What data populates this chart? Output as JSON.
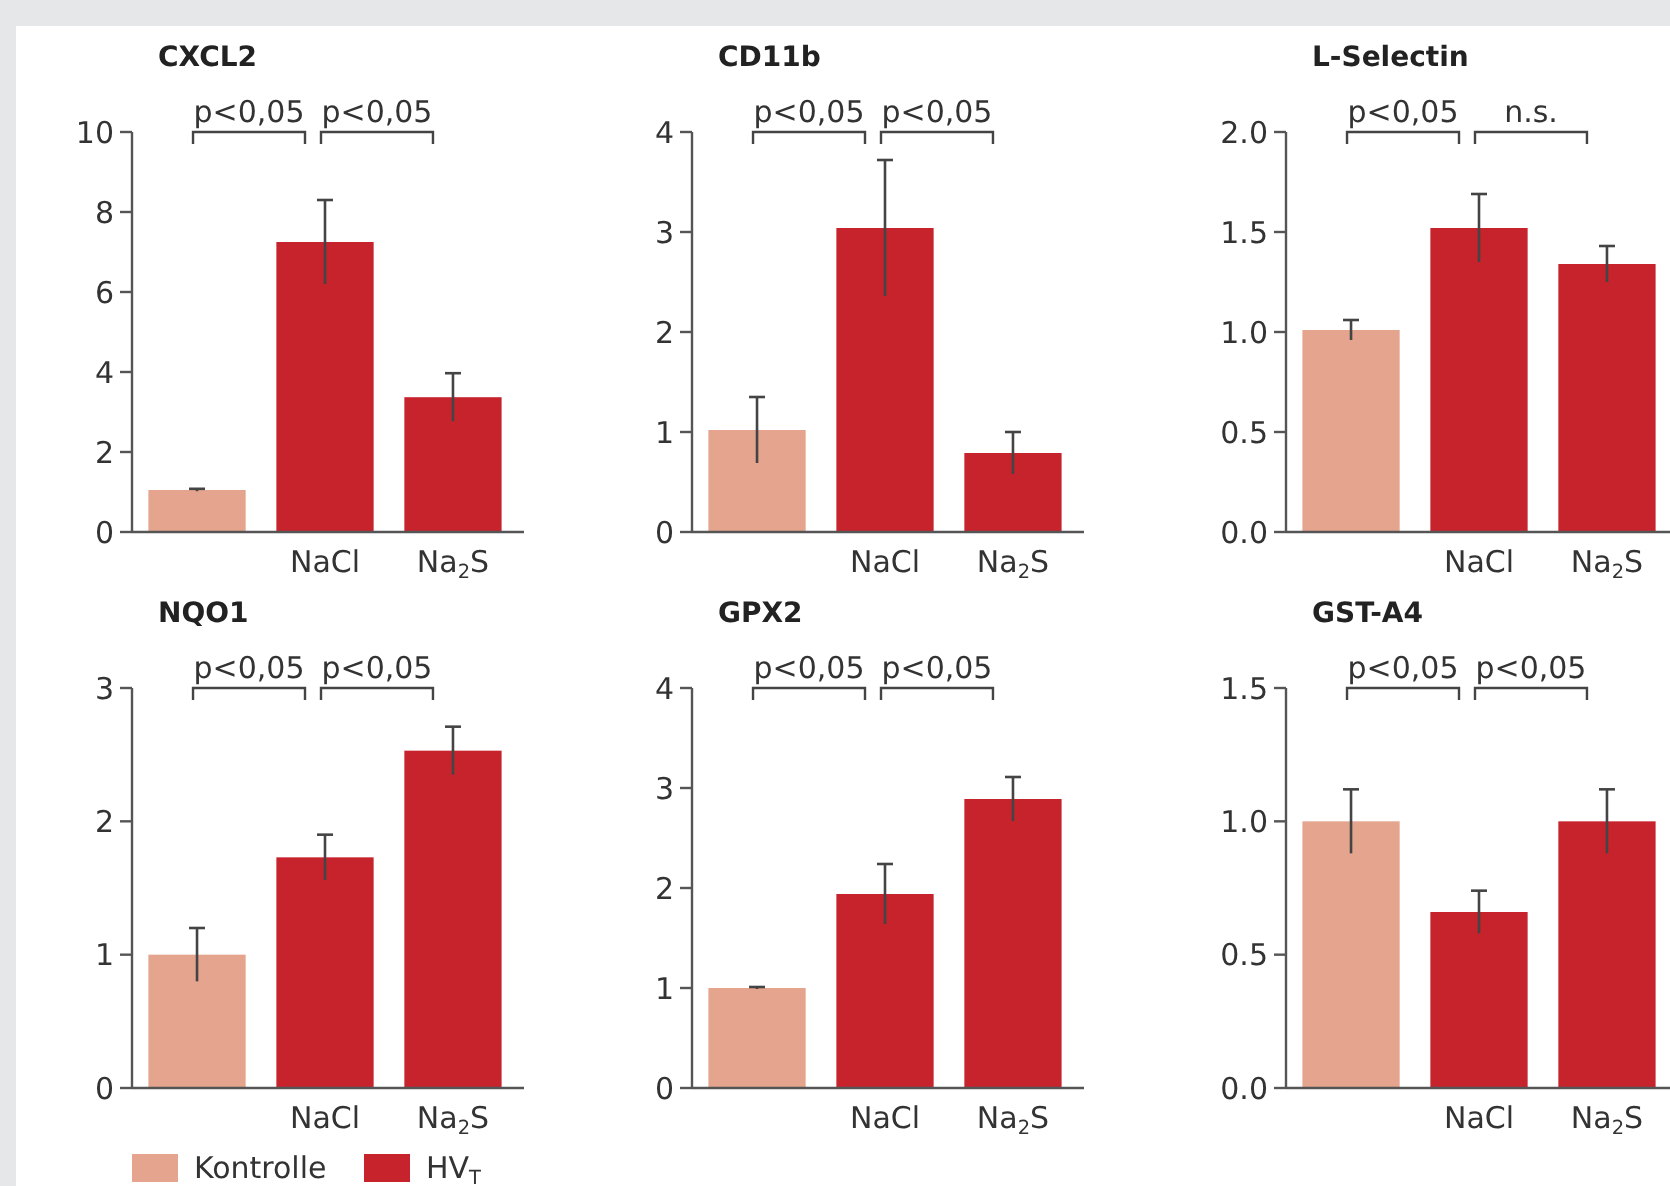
{
  "chart_data": [
    {
      "type": "bar",
      "title": "CXCL2",
      "categories": [
        null,
        "NaCl",
        "Na$_{2}$S"
      ],
      "ylim": [
        0,
        10
      ],
      "yticks": [
        0,
        2,
        4,
        6,
        8,
        10
      ],
      "legend": false,
      "annotations": [
        "p<0,05",
        "p<0,05"
      ],
      "series": [
        {
          "color": "#e5a48e",
          "values": [
            1.05,
            null,
            null
          ],
          "errors": [
            0.03,
            null,
            null
          ]
        },
        {
          "color": "#c7232d",
          "values": [
            null,
            7.25,
            3.37
          ],
          "errors": [
            null,
            1.05,
            0.6
          ]
        }
      ]
    },
    {
      "type": "bar",
      "title": "CD11b",
      "categories": [
        null,
        "NaCl",
        "Na$_{2}$S"
      ],
      "ylim": [
        0,
        4
      ],
      "yticks": [
        0,
        1,
        2,
        3,
        4
      ],
      "legend": false,
      "annotations": [
        "p<0,05",
        "p<0,05"
      ],
      "series": [
        {
          "color": "#e5a48e",
          "values": [
            1.02,
            null,
            null
          ],
          "errors": [
            0.33,
            null,
            null
          ]
        },
        {
          "color": "#c7232d",
          "values": [
            null,
            3.04,
            0.79
          ],
          "errors": [
            null,
            0.68,
            0.21
          ]
        }
      ]
    },
    {
      "type": "bar",
      "title": "L-Selectin",
      "categories": [
        null,
        "NaCl",
        "Na$_{2}$S"
      ],
      "ylim": [
        0,
        2
      ],
      "yticks": [
        {
          "value": 0,
          "label": "0.0"
        },
        {
          "value": 0.5,
          "label": "0.5"
        },
        {
          "value": 1,
          "label": "1.0"
        },
        {
          "value": 1.5,
          "label": "1.5"
        },
        {
          "value": 2,
          "label": "2.0"
        }
      ],
      "legend": false,
      "annotations": [
        "p<0,05",
        "n.s."
      ],
      "series": [
        {
          "color": "#e5a48e",
          "values": [
            1.01,
            null,
            null
          ],
          "errors": [
            0.05,
            null,
            null
          ]
        },
        {
          "color": "#c7232d",
          "values": [
            null,
            1.52,
            1.34
          ],
          "errors": [
            null,
            0.17,
            0.09
          ]
        }
      ]
    },
    {
      "type": "bar",
      "title": "NQO1",
      "categories": [
        null,
        "NaCl",
        "Na$_{2}$S"
      ],
      "ylim": [
        0,
        3
      ],
      "yticks": [
        0,
        1,
        2,
        3
      ],
      "legend": "bottom",
      "annotations": [
        "p<0,05",
        "p<0,05"
      ],
      "series": [
        {
          "name": "Kontrolle",
          "color": "#e5a48e",
          "values": [
            1.0,
            null,
            null
          ],
          "errors": [
            0.2,
            null,
            null
          ]
        },
        {
          "name": "HV$_{T}$",
          "color": "#c7232d",
          "values": [
            null,
            1.73,
            2.53
          ],
          "errors": [
            null,
            0.17,
            0.18
          ]
        }
      ]
    },
    {
      "type": "bar",
      "title": "GPX2",
      "categories": [
        null,
        "NaCl",
        "Na$_{2}$S"
      ],
      "ylim": [
        0,
        4
      ],
      "yticks": [
        0,
        1,
        2,
        3,
        4
      ],
      "legend": false,
      "annotations": [
        "p<0,05",
        "p<0,05"
      ],
      "series": [
        {
          "color": "#e5a48e",
          "values": [
            1.0,
            null,
            null
          ],
          "errors": [
            0.01,
            null,
            null
          ]
        },
        {
          "color": "#c7232d",
          "values": [
            null,
            1.94,
            2.89
          ],
          "errors": [
            null,
            0.3,
            0.22
          ]
        }
      ]
    },
    {
      "type": "bar",
      "title": "GST-A4",
      "categories": [
        null,
        "NaCl",
        "Na$_{2}$S"
      ],
      "ylim": [
        0,
        1.5
      ],
      "yticks": [
        {
          "value": 0,
          "label": "0.0"
        },
        {
          "value": 0.5,
          "label": "0.5"
        },
        {
          "value": 1,
          "label": "1.0"
        },
        {
          "value": 1.5,
          "label": "1.5"
        }
      ],
      "legend": false,
      "annotations": [
        "p<0,05",
        "p<0,05"
      ],
      "series": [
        {
          "color": "#e5a48e",
          "values": [
            1.0,
            null,
            null
          ],
          "errors": [
            0.12,
            null,
            null
          ]
        },
        {
          "color": "#c7232d",
          "values": [
            null,
            0.66,
            1.0
          ],
          "errors": [
            null,
            0.08,
            0.12
          ]
        }
      ]
    }
  ]
}
